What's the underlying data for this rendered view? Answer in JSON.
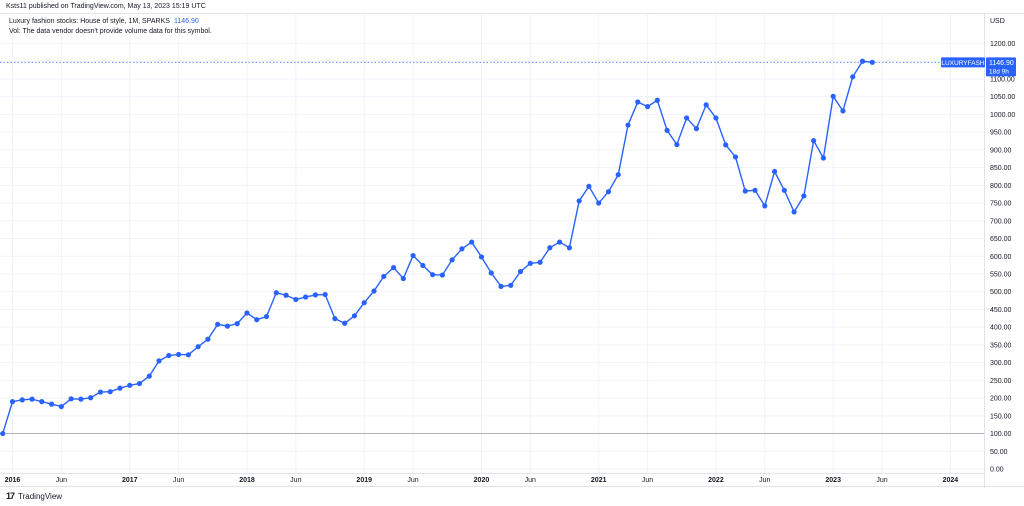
{
  "header": {
    "published_by": "Ksts11 published on TradingView.com, May 13, 2023 15:19 UTC"
  },
  "legend": {
    "symbol_line": "Luxury fashion stocks: House of style, 1M, SPARKS",
    "price": "1146.90",
    "volume_note": "Vol: The data vendor doesn't provide volume data for this symbol."
  },
  "footer": {
    "logo": "17",
    "brand": "TradingView"
  },
  "colors": {
    "line": "#2962ff",
    "grid": "#f0f3fa",
    "baseline": "#b2b5be",
    "axis_text": "#131722",
    "label_bg": "#2962ff"
  },
  "chart_data": {
    "type": "line",
    "currency": "USD",
    "ylim": [
      0,
      1200
    ],
    "yticks": [
      0,
      50,
      100,
      150,
      200,
      250,
      300,
      350,
      400,
      450,
      500,
      550,
      600,
      650,
      700,
      750,
      800,
      850,
      900,
      950,
      1000,
      1050,
      1100,
      1150,
      1200
    ],
    "ytick_labels": [
      "0.00",
      "50.00",
      "100.00",
      "150.00",
      "200.00",
      "250.00",
      "300.00",
      "350.00",
      "400.00",
      "450.00",
      "500.00",
      "550.00",
      "600.00",
      "650.00",
      "700.00",
      "750.00",
      "800.00",
      "850.00",
      "900.00",
      "950.00",
      "1000.00",
      "1050.00",
      "1100.00",
      "1150.00",
      "1200.00"
    ],
    "xtick_labels": [
      {
        "label": "2016",
        "year": 2016,
        "month": 1
      },
      {
        "label": "Jun",
        "year": 2016,
        "month": 6
      },
      {
        "label": "2017",
        "year": 2017,
        "month": 1
      },
      {
        "label": "Jun",
        "year": 2017,
        "month": 6
      },
      {
        "label": "2018",
        "year": 2018,
        "month": 1
      },
      {
        "label": "Jun",
        "year": 2018,
        "month": 6
      },
      {
        "label": "2019",
        "year": 2019,
        "month": 1
      },
      {
        "label": "Jun",
        "year": 2019,
        "month": 6
      },
      {
        "label": "2020",
        "year": 2020,
        "month": 1
      },
      {
        "label": "Jun",
        "year": 2020,
        "month": 6
      },
      {
        "label": "2021",
        "year": 2021,
        "month": 1
      },
      {
        "label": "Jun",
        "year": 2021,
        "month": 6
      },
      {
        "label": "2022",
        "year": 2022,
        "month": 1
      },
      {
        "label": "Jun",
        "year": 2022,
        "month": 6
      },
      {
        "label": "2023",
        "year": 2023,
        "month": 1
      },
      {
        "label": "Jun",
        "year": 2023,
        "month": 6
      },
      {
        "label": "2024",
        "year": 2024,
        "month": 1
      }
    ],
    "baseline_value": 100,
    "last_value": 1146.9,
    "price_label": {
      "symbol": "LUXURYFASH",
      "value": "1146.90",
      "countdown": "18d 9h"
    },
    "series": [
      {
        "start": {
          "year": 2015,
          "month": 12
        },
        "values": [
          100,
          190,
          195,
          197,
          190,
          183,
          176,
          198,
          197,
          201,
          217,
          218,
          228,
          236,
          241,
          262,
          305,
          320,
          323,
          322,
          345,
          366,
          408,
          403,
          410,
          440,
          421,
          430,
          497,
          490,
          478,
          485,
          491,
          492,
          424,
          411,
          432,
          469,
          502,
          543,
          568,
          537,
          602,
          574,
          548,
          547,
          590,
          621,
          640,
          598,
          553,
          515,
          518,
          557,
          580,
          583,
          624,
          640,
          624,
          756,
          797,
          750,
          782,
          830,
          970,
          1035,
          1022,
          1040,
          955,
          915,
          990,
          960,
          1027,
          990,
          914,
          880,
          784,
          786,
          742,
          839,
          786,
          725,
          770,
          926,
          877,
          1051,
          1010,
          1106,
          1150,
          1147
        ]
      }
    ]
  }
}
